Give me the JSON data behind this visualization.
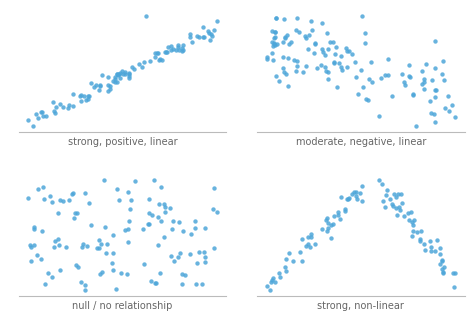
{
  "seed": 7,
  "n_points": 100,
  "dot_color": "#4da6d9",
  "dot_size": 10,
  "dot_alpha": 0.85,
  "background_color": "#ffffff",
  "labels": [
    "strong, positive, linear",
    "moderate, negative, linear",
    "null / no relationship",
    "strong, non-linear"
  ],
  "label_fontsize": 7,
  "spine_color": "#bbbbbb",
  "label_color": "#666666"
}
